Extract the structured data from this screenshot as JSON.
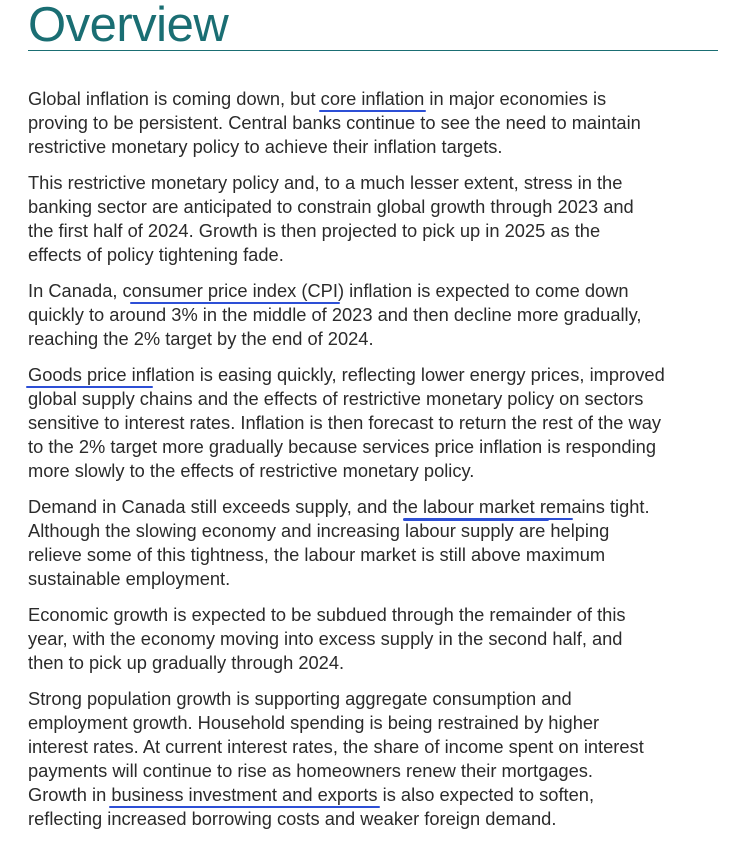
{
  "title": "Overview",
  "paragraphs": [
    {
      "lines": [
        [
          "Global inflation is coming down, but ",
          {
            "hl": "core inflation"
          },
          " in major economies is"
        ],
        [
          "proving to be persistent. Central banks continue to see the need to maintain"
        ],
        [
          "restrictive monetary policy to achieve their inflation targets."
        ]
      ]
    },
    {
      "lines": [
        [
          "This restrictive monetary policy and, to a much lesser extent, stress in the"
        ],
        [
          "banking sector are anticipated to constrain global growth through 2023 and"
        ],
        [
          "the first half of 2024. Growth is then projected to pick up in 2025 as the"
        ],
        [
          "effects of policy tightening fade."
        ]
      ]
    },
    {
      "lines": [
        [
          "In Canada, c",
          {
            "hl": "onsumer price index (CPI"
          },
          ") inflation is expected to come down"
        ],
        [
          "quickly to around 3% in the middle of 2023 and then decline more gradually,"
        ],
        [
          "reaching the 2% target by the end of 2024."
        ]
      ]
    },
    {
      "lines": [
        [
          {
            "hl": "Goods price inf"
          },
          "lation is easing quickly, reflecting lower energy prices, improved"
        ],
        [
          "global supply chains and the effects of restrictive monetary policy on sectors"
        ],
        [
          "sensitive to interest rates. Inflation is then forecast to return the rest of the way"
        ],
        [
          "to the 2% target more gradually because services price inflation is responding"
        ],
        [
          "more slowly to the effects of restrictive monetary policy."
        ]
      ]
    },
    {
      "lines": [
        [
          "Demand in Canada still exceeds supply, and the ",
          {
            "hl": "labour market rem"
          },
          "ains tight."
        ],
        [
          "Although the slowing economy and increasing labour supply are helping"
        ],
        [
          "relieve some of this tightness, the labour market is still above maximum"
        ],
        [
          "sustainable employment."
        ]
      ]
    },
    {
      "lines": [
        [
          "Economic growth is expected to be subdued through the remainder of this"
        ],
        [
          "year, with the economy moving into excess supply in the second half, and"
        ],
        [
          "then to pick up gradually through 2024."
        ]
      ]
    },
    {
      "lines": [
        [
          "Strong population growth is supporting aggregate consumption and"
        ],
        [
          "employment growth. Household spending is being restrained by higher"
        ],
        [
          "interest rates. At current interest rates, the share of income spent on interest"
        ],
        [
          "payments will continue to rise as homeowners renew their mortgages."
        ],
        [
          "Growth in ",
          {
            "hl": "business investment and exports"
          },
          " is also expected to soften,"
        ],
        [
          "reflecting increased borrowing costs and weaker foreign demand."
        ]
      ]
    }
  ],
  "colors": {
    "title": "#1a6e73",
    "ink": "#2d4fd6",
    "text": "#2b2b2b"
  }
}
